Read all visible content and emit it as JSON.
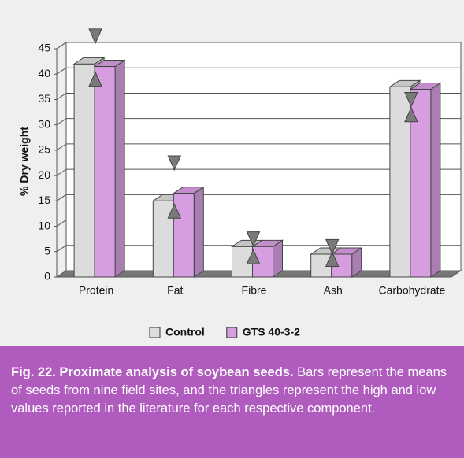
{
  "chart_data": {
    "type": "bar3d",
    "ylabel": "% Dry weight",
    "categories": [
      "Protein",
      "Fat",
      "Fibre",
      "Ash",
      "Carbohydrate"
    ],
    "series": [
      {
        "name": "Control",
        "color": "#dcdcdc",
        "values": [
          42,
          15,
          6,
          4.5,
          37.5
        ]
      },
      {
        "name": "GTS 40-3-2",
        "color": "#d69ee0",
        "values": [
          41.5,
          16.5,
          6,
          4.5,
          37
        ]
      }
    ],
    "literature_high": [
      47.5,
      22.5,
      7.5,
      6,
      35
    ],
    "literature_low": [
      39,
      13,
      4,
      3.5,
      32
    ],
    "marker_color": "#7a7a7a",
    "ylim": [
      0,
      45
    ],
    "yticks": [
      0,
      5,
      10,
      15,
      20,
      25,
      30,
      35,
      40,
      45
    ],
    "grid": true
  },
  "caption": {
    "title": "Fig. 22. Proximate analysis of soybean seeds.",
    "text": "Bars represent the means of seeds from nine field sites, and the triangles represent the high and low values reported in the literature for each respective component."
  }
}
